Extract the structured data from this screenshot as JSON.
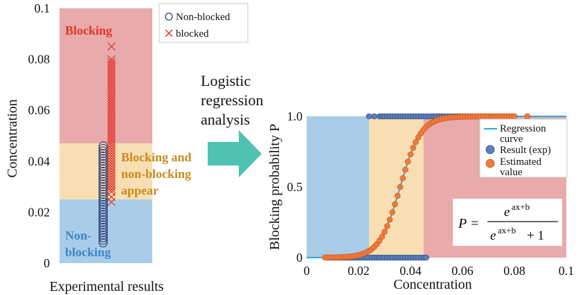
{
  "chart_data": [
    {
      "type": "scatter",
      "title": "",
      "xlabel": "Experimental results",
      "ylabel": "Concentration",
      "ylim": [
        0,
        0.1
      ],
      "y_ticks": [
        "0",
        "0.02",
        "0.04",
        "0.06",
        "0.08",
        "0.1"
      ],
      "regions": [
        {
          "label": "Blocking",
          "from": 0.047,
          "to": 0.1,
          "color": "#e8aaaa",
          "text_color": "#e3342f"
        },
        {
          "label": "Blocking and non-blocking appear",
          "lines": [
            "Blocking and",
            "non-blocking",
            "appear"
          ],
          "from": 0.025,
          "to": 0.047,
          "color": "#f7dfb3",
          "text_color": "#c98a1e"
        },
        {
          "label": "Non-blocking",
          "lines": [
            "Non-",
            "blocking"
          ],
          "from": 0,
          "to": 0.025,
          "color": "#a9cde8",
          "text_color": "#3c86c9"
        }
      ],
      "legend": {
        "position": "top-right",
        "entries": [
          {
            "name": "Non-blocked",
            "marker": "circle",
            "color": "#2d3e73"
          },
          {
            "name": "blocked",
            "marker": "x",
            "color": "#e3342f"
          }
        ]
      },
      "series": [
        {
          "name": "Non-blocked",
          "marker": "circle",
          "color": "#2d3e73",
          "values": [
            0.008,
            0.009,
            0.01,
            0.011,
            0.012,
            0.013,
            0.014,
            0.015,
            0.016,
            0.017,
            0.018,
            0.019,
            0.02,
            0.021,
            0.022,
            0.023,
            0.024,
            0.025,
            0.026,
            0.027,
            0.028,
            0.029,
            0.03,
            0.031,
            0.032,
            0.033,
            0.034,
            0.035,
            0.036,
            0.037,
            0.038,
            0.039,
            0.04,
            0.041,
            0.042,
            0.043,
            0.044,
            0.045,
            0.046
          ]
        },
        {
          "name": "blocked",
          "marker": "x",
          "color": "#e3342f",
          "values": [
            0.024,
            0.026,
            0.028,
            0.029,
            0.03,
            0.031,
            0.032,
            0.033,
            0.034,
            0.035,
            0.036,
            0.037,
            0.038,
            0.039,
            0.04,
            0.041,
            0.042,
            0.043,
            0.044,
            0.045,
            0.046,
            0.047,
            0.048,
            0.049,
            0.05,
            0.051,
            0.052,
            0.053,
            0.054,
            0.055,
            0.056,
            0.057,
            0.058,
            0.059,
            0.06,
            0.061,
            0.062,
            0.063,
            0.064,
            0.065,
            0.066,
            0.067,
            0.068,
            0.069,
            0.07,
            0.071,
            0.072,
            0.073,
            0.074,
            0.075,
            0.076,
            0.077,
            0.078,
            0.079,
            0.08,
            0.085
          ]
        }
      ]
    },
    {
      "type": "scatter",
      "title": "",
      "xlabel": "Concentration",
      "ylabel": "Blocking probability P",
      "xlim": [
        0,
        0.1
      ],
      "ylim": [
        0,
        1
      ],
      "x_ticks": [
        "0",
        "0.02",
        "0.04",
        "0.06",
        "0.08",
        "0.1"
      ],
      "y_ticks": [
        "0",
        "0.5",
        "1.0"
      ],
      "regions": [
        {
          "from": 0,
          "to": 0.024,
          "color": "#a9cde8"
        },
        {
          "from": 0.024,
          "to": 0.045,
          "color": "#f7dfb3"
        },
        {
          "from": 0.045,
          "to": 0.1,
          "color": "#e8aaaa"
        }
      ],
      "logistic": {
        "a": 250,
        "b": -9.0
      },
      "legend": {
        "position": "top-right",
        "entries": [
          {
            "name": "Regression curve",
            "lines": [
              "Regression",
              "curve"
            ],
            "marker": "line",
            "color": "#2aa8e0"
          },
          {
            "name": "Result (exp)",
            "marker": "circle",
            "color": "#5b80b8"
          },
          {
            "name": "Estimated value",
            "lines": [
              "Estimated",
              "value"
            ],
            "marker": "circle",
            "color": "#f07a3c"
          }
        ]
      },
      "formula": {
        "lhs": "P =",
        "numerator": "e",
        "numerator_sup": "ax+b",
        "denominator": "e",
        "denominator_sup": "ax+b",
        "denominator_tail": "+ 1"
      },
      "series": [
        {
          "name": "Result (exp)",
          "color": "#5b80b8",
          "x0": [
            0.008,
            0.009,
            0.01,
            0.011,
            0.012,
            0.013,
            0.014,
            0.015,
            0.016,
            0.017,
            0.018,
            0.019,
            0.02,
            0.021,
            0.022,
            0.023,
            0.024,
            0.025,
            0.026,
            0.027,
            0.028,
            0.029,
            0.03,
            0.031,
            0.032,
            0.033,
            0.034,
            0.035,
            0.036,
            0.037,
            0.038,
            0.039,
            0.04,
            0.041,
            0.042,
            0.043,
            0.044,
            0.045,
            0.046
          ],
          "x1": [
            0.024,
            0.026,
            0.028,
            0.029,
            0.03,
            0.031,
            0.032,
            0.033,
            0.034,
            0.035,
            0.036,
            0.037,
            0.038,
            0.039,
            0.04,
            0.041,
            0.042,
            0.043,
            0.044,
            0.045,
            0.046,
            0.047,
            0.048,
            0.049,
            0.05,
            0.051,
            0.052,
            0.053,
            0.054,
            0.055,
            0.056,
            0.057,
            0.058,
            0.059,
            0.06,
            0.061,
            0.062,
            0.063,
            0.064,
            0.065,
            0.066,
            0.067,
            0.068,
            0.069,
            0.07,
            0.071,
            0.072,
            0.073,
            0.074,
            0.075,
            0.076,
            0.077,
            0.078,
            0.079,
            0.08,
            0.085
          ]
        },
        {
          "name": "Estimated value",
          "color": "#f07a3c",
          "x": [
            0.007,
            0.008,
            0.009,
            0.01,
            0.011,
            0.012,
            0.013,
            0.014,
            0.015,
            0.016,
            0.017,
            0.018,
            0.019,
            0.02,
            0.021,
            0.022,
            0.023,
            0.024,
            0.025,
            0.026,
            0.027,
            0.028,
            0.029,
            0.03,
            0.031,
            0.032,
            0.033,
            0.034,
            0.035,
            0.036,
            0.037,
            0.038,
            0.039,
            0.04,
            0.041,
            0.042,
            0.043,
            0.044,
            0.045,
            0.046,
            0.047,
            0.048,
            0.049,
            0.05,
            0.051,
            0.052,
            0.053,
            0.054,
            0.055,
            0.056,
            0.057,
            0.058,
            0.059,
            0.06,
            0.061,
            0.062,
            0.063,
            0.064,
            0.065,
            0.066,
            0.067,
            0.068,
            0.069,
            0.07,
            0.071,
            0.072,
            0.073,
            0.074,
            0.075,
            0.076,
            0.077,
            0.078,
            0.079,
            0.08,
            0.085
          ]
        }
      ]
    }
  ],
  "arrow": {
    "lines": [
      "Logistic",
      "regression",
      "analysis"
    ],
    "color": "#4fc3b0"
  }
}
